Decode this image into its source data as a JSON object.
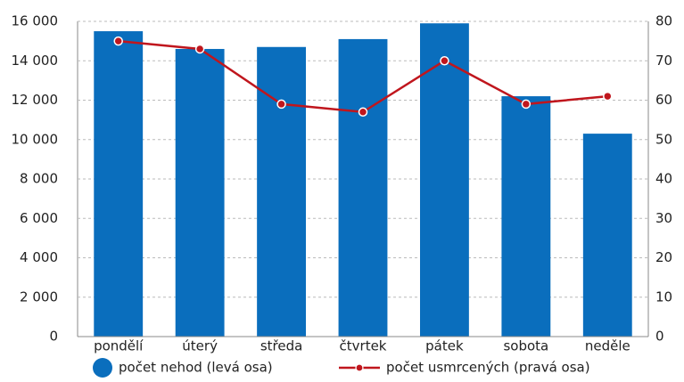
{
  "chart_data": {
    "type": "combo",
    "categories": [
      "pondělí",
      "úterý",
      "středa",
      "čtvrtek",
      "pátek",
      "sobota",
      "neděle"
    ],
    "series": [
      {
        "name": "počet nehod (levá osa)",
        "type": "bar",
        "color": "#0a6ebd",
        "values": [
          15500,
          14600,
          14700,
          15100,
          15900,
          12200,
          10300
        ]
      },
      {
        "name": "počet usmrcených (pravá osa)",
        "type": "line",
        "axis": "y2",
        "color": "#c0161d",
        "values": [
          75,
          73,
          59,
          57,
          70,
          59,
          61
        ]
      }
    ],
    "ylim": [
      0,
      16000
    ],
    "yticks": [
      0,
      {
        "value": 2000,
        "label": "2 000"
      },
      {
        "value": 4000,
        "label": "4 000"
      },
      {
        "value": 6000,
        "label": "6 000"
      },
      {
        "value": 8000,
        "label": "8 000"
      },
      {
        "value": 10000,
        "label": "10 000"
      },
      {
        "value": 12000,
        "label": "12 000"
      },
      {
        "value": 14000,
        "label": "14 000"
      },
      {
        "value": 16000,
        "label": "16 000"
      }
    ],
    "y2lim": [
      0,
      80
    ],
    "y2ticks": [
      0,
      10,
      20,
      30,
      40,
      50,
      60,
      70,
      80
    ],
    "grid": true
  }
}
